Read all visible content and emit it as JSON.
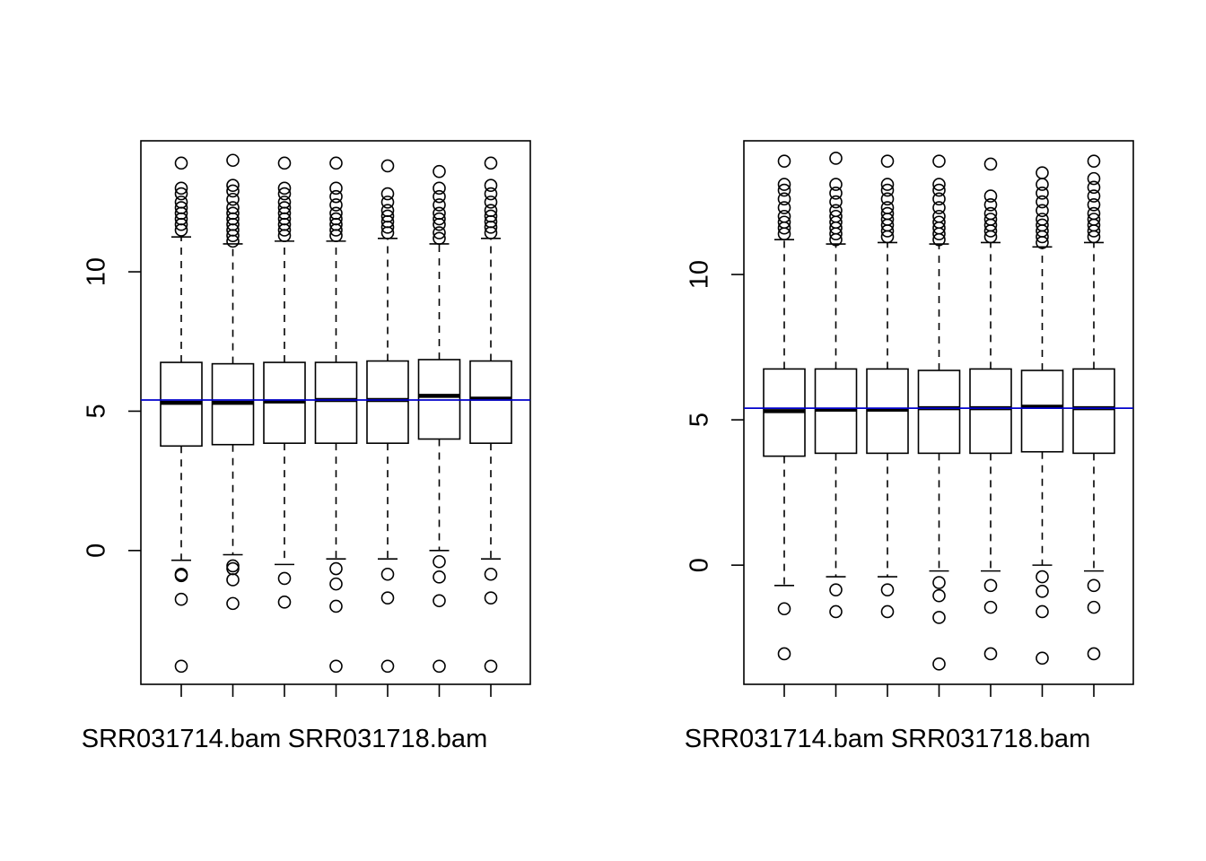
{
  "chart_data": [
    {
      "type": "boxplot",
      "panel": "left",
      "categories": [
        "SRR031714.bam",
        "",
        "",
        "",
        "SRR031718.bam",
        "",
        ""
      ],
      "category_tick_labels_shown": [
        "SRR031714.bam",
        "SRR031718.bam"
      ],
      "ylim": [
        -4.8,
        14.7
      ],
      "yticks": [
        0,
        5,
        10
      ],
      "ytick_labels": [
        "0",
        "5",
        "10"
      ],
      "reference_line": {
        "y": 5.4,
        "color": "#0000cc"
      },
      "boxes": [
        {
          "q1": 3.75,
          "median": 5.3,
          "q3": 6.75,
          "whisker_low": -0.35,
          "whisker_high": 11.25,
          "outliers": [
            -0.85,
            -0.9,
            -1.75,
            -4.15,
            11.5,
            11.7,
            11.9,
            12.1,
            12.3,
            12.5,
            12.8,
            13.0,
            13.9
          ]
        },
        {
          "q1": 3.8,
          "median": 5.3,
          "q3": 6.7,
          "whisker_low": -0.15,
          "whisker_high": 11.0,
          "outliers": [
            -0.55,
            -0.65,
            -1.05,
            -1.9,
            11.1,
            11.3,
            11.5,
            11.7,
            11.9,
            12.1,
            12.3,
            12.6,
            12.9,
            13.1,
            14.0
          ]
        },
        {
          "q1": 3.85,
          "median": 5.35,
          "q3": 6.75,
          "whisker_low": -0.5,
          "whisker_high": 11.1,
          "outliers": [
            -1.0,
            -1.85,
            11.3,
            11.5,
            11.7,
            11.9,
            12.1,
            12.3,
            12.5,
            12.8,
            13.0,
            13.9
          ]
        },
        {
          "q1": 3.85,
          "median": 5.4,
          "q3": 6.75,
          "whisker_low": -0.3,
          "whisker_high": 11.1,
          "outliers": [
            -0.65,
            -1.2,
            -2.0,
            -4.15,
            11.3,
            11.5,
            11.7,
            11.9,
            12.1,
            12.4,
            12.7,
            13.0,
            13.9
          ]
        },
        {
          "q1": 3.85,
          "median": 5.4,
          "q3": 6.8,
          "whisker_low": -0.3,
          "whisker_high": 11.2,
          "outliers": [
            -0.85,
            -1.7,
            -4.15,
            11.4,
            11.6,
            11.8,
            12.0,
            12.2,
            12.5,
            12.8,
            13.8
          ]
        },
        {
          "q1": 4.0,
          "median": 5.55,
          "q3": 6.85,
          "whisker_low": 0.0,
          "whisker_high": 11.0,
          "outliers": [
            -0.4,
            -0.95,
            -1.8,
            -4.15,
            11.2,
            11.4,
            11.7,
            11.9,
            12.1,
            12.4,
            12.7,
            13.0,
            13.6
          ]
        },
        {
          "q1": 3.85,
          "median": 5.45,
          "q3": 6.8,
          "whisker_low": -0.3,
          "whisker_high": 11.2,
          "outliers": [
            -0.85,
            -1.7,
            -4.15,
            11.4,
            11.6,
            11.8,
            12.0,
            12.2,
            12.5,
            12.8,
            13.1,
            13.9
          ]
        }
      ]
    },
    {
      "type": "boxplot",
      "panel": "right",
      "categories": [
        "SRR031714.bam",
        "",
        "",
        "",
        "SRR031718.bam",
        "",
        ""
      ],
      "category_tick_labels_shown": [
        "SRR031714.bam",
        "SRR031718.bam"
      ],
      "ylim": [
        -4.1,
        14.6
      ],
      "yticks": [
        0,
        5,
        10
      ],
      "ytick_labels": [
        "0",
        "5",
        "10"
      ],
      "reference_line": {
        "y": 5.4,
        "color": "#0000cc"
      },
      "boxes": [
        {
          "q1": 3.75,
          "median": 5.3,
          "q3": 6.75,
          "whisker_low": -0.7,
          "whisker_high": 11.2,
          "outliers": [
            -1.5,
            -3.05,
            11.4,
            11.6,
            11.8,
            12.0,
            12.3,
            12.6,
            12.9,
            13.1,
            13.9
          ]
        },
        {
          "q1": 3.85,
          "median": 5.35,
          "q3": 6.75,
          "whisker_low": -0.4,
          "whisker_high": 11.05,
          "outliers": [
            -0.85,
            -1.6,
            11.2,
            11.4,
            11.6,
            11.8,
            12.0,
            12.2,
            12.5,
            12.8,
            13.1,
            14.0
          ]
        },
        {
          "q1": 3.85,
          "median": 5.35,
          "q3": 6.75,
          "whisker_low": -0.4,
          "whisker_high": 11.1,
          "outliers": [
            -0.85,
            -1.6,
            11.3,
            11.5,
            11.7,
            11.9,
            12.1,
            12.3,
            12.6,
            12.9,
            13.1,
            13.9
          ]
        },
        {
          "q1": 3.85,
          "median": 5.4,
          "q3": 6.7,
          "whisker_low": -0.2,
          "whisker_high": 11.05,
          "outliers": [
            -0.6,
            -1.05,
            -1.8,
            -3.4,
            11.2,
            11.4,
            11.6,
            11.8,
            12.0,
            12.3,
            12.6,
            12.9,
            13.1,
            13.9
          ]
        },
        {
          "q1": 3.85,
          "median": 5.4,
          "q3": 6.75,
          "whisker_low": -0.2,
          "whisker_high": 11.1,
          "outliers": [
            -0.7,
            -1.45,
            -3.05,
            11.3,
            11.5,
            11.7,
            11.9,
            12.1,
            12.4,
            12.7,
            13.8
          ]
        },
        {
          "q1": 3.9,
          "median": 5.45,
          "q3": 6.7,
          "whisker_low": 0.0,
          "whisker_high": 10.95,
          "outliers": [
            -0.4,
            -0.9,
            -1.6,
            -3.2,
            11.1,
            11.3,
            11.5,
            11.7,
            11.9,
            12.2,
            12.5,
            12.8,
            13.1,
            13.5
          ]
        },
        {
          "q1": 3.85,
          "median": 5.4,
          "q3": 6.75,
          "whisker_low": -0.2,
          "whisker_high": 11.1,
          "outliers": [
            -0.7,
            -1.45,
            -3.05,
            11.3,
            11.5,
            11.7,
            11.9,
            12.1,
            12.4,
            12.7,
            13.0,
            13.3,
            13.9
          ]
        }
      ]
    }
  ]
}
